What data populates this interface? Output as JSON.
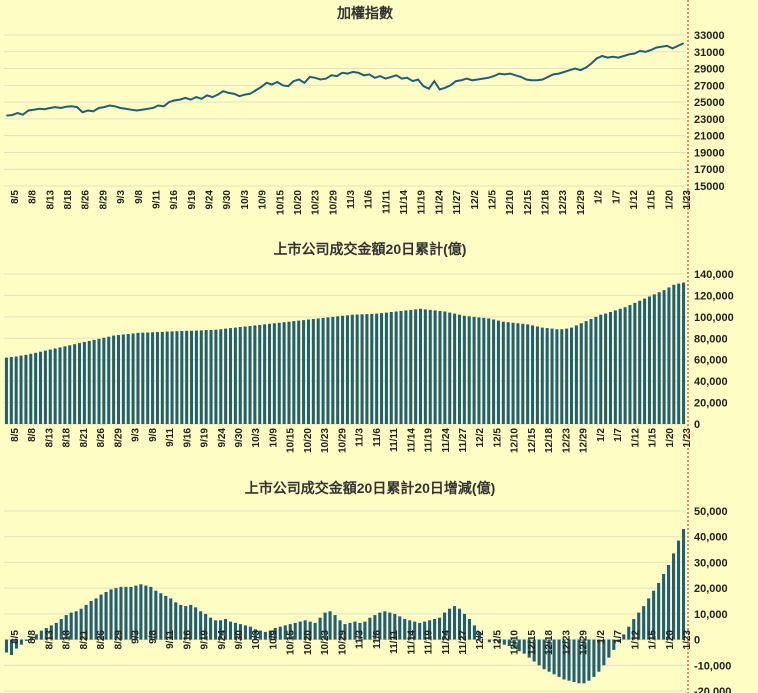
{
  "colors": {
    "background": "#FEFDC4",
    "series": "#1F5F7A",
    "marker_line": "#E53935"
  },
  "chart_data": [
    {
      "type": "line",
      "title": "加權指數",
      "xlabel": "",
      "ylabel": "",
      "ylim": [
        15000,
        33000
      ],
      "yticks": [
        "33000",
        "31000",
        "29000",
        "27000",
        "25000",
        "23000",
        "21000",
        "19000",
        "17000",
        "15000"
      ],
      "grid": true,
      "x_tick_labels": [
        "8/5",
        "8/8",
        "8/13",
        "8/18",
        "8/26",
        "8/29",
        "9/3",
        "9/8",
        "9/11",
        "9/16",
        "9/19",
        "9/24",
        "9/30",
        "10/3",
        "10/9",
        "10/15",
        "10/20",
        "10/23",
        "10/29",
        "11/3",
        "11/6",
        "11/11",
        "11/14",
        "11/19",
        "11/24",
        "11/27",
        "12/2",
        "12/5",
        "12/10",
        "12/15",
        "12/18",
        "12/23",
        "12/29",
        "1/2",
        "1/7",
        "1/12",
        "1/15",
        "1/20",
        "1/23"
      ],
      "series": [
        {
          "values": [
            23400,
            23450,
            23700,
            23500,
            24000,
            24100,
            24200,
            24150,
            24300,
            24400,
            24300,
            24450,
            24500,
            24400,
            23800,
            24000,
            23900,
            24300,
            24400,
            24600,
            24500,
            24300,
            24200,
            24100,
            24000,
            24100,
            24200,
            24300,
            24600,
            24500,
            25000,
            25200,
            25300,
            25500,
            25300,
            25600,
            25400,
            25800,
            25600,
            25900,
            26300,
            26100,
            26000,
            25700,
            25900,
            26000,
            26400,
            26800,
            27300,
            27100,
            27400,
            27000,
            26900,
            27500,
            27700,
            27300,
            28000,
            27900,
            27700,
            27800,
            28200,
            28100,
            28500,
            28400,
            28600,
            28500,
            28200,
            28300,
            27900,
            28100,
            27800,
            28000,
            28200,
            27800,
            27900,
            27500,
            27700,
            26900,
            26600,
            27500,
            26500,
            26700,
            27000,
            27500,
            27600,
            27800,
            27600,
            27700,
            27800,
            27900,
            28100,
            28400,
            28300,
            28400,
            28200,
            28000,
            27700,
            27600,
            27600,
            27700,
            28000,
            28300,
            28400,
            28600,
            28800,
            29000,
            28800,
            29100,
            29600,
            30200,
            30500,
            30300,
            30400,
            30300,
            30500,
            30700,
            30800,
            31100,
            31000,
            31200,
            31500,
            31600,
            31700,
            31400,
            31700,
            32000
          ]
        }
      ]
    },
    {
      "type": "bar",
      "title": "上市公司成交金額20日累計(億)",
      "xlabel": "",
      "ylabel": "",
      "ylim": [
        0,
        140000
      ],
      "yticks": [
        "140,000",
        "120,000",
        "100,000",
        "80,000",
        "60,000",
        "40,000",
        "20,000",
        "0"
      ],
      "grid": true,
      "x_tick_labels": [
        "8/5",
        "8/8",
        "8/13",
        "8/18",
        "8/21",
        "8/26",
        "8/29",
        "9/3",
        "9/8",
        "9/11",
        "9/16",
        "9/19",
        "9/24",
        "9/30",
        "10/3",
        "10/9",
        "10/15",
        "10/20",
        "10/23",
        "10/29",
        "11/3",
        "11/6",
        "11/11",
        "11/14",
        "11/19",
        "11/24",
        "11/27",
        "12/2",
        "12/5",
        "12/10",
        "12/15",
        "12/18",
        "12/23",
        "12/29",
        "1/2",
        "1/7",
        "1/12",
        "1/15",
        "1/20",
        "1/23"
      ],
      "series": [
        {
          "values": [
            62000,
            62500,
            63000,
            63800,
            64500,
            65500,
            66500,
            67500,
            68500,
            69500,
            70500,
            71500,
            72500,
            73500,
            74500,
            75500,
            76500,
            77500,
            78500,
            79500,
            80500,
            81500,
            82500,
            83000,
            83500,
            84000,
            84500,
            85000,
            85200,
            85400,
            85600,
            85800,
            86000,
            86200,
            86400,
            86600,
            86800,
            87000,
            87000,
            87200,
            87400,
            87600,
            87800,
            88000,
            88500,
            89000,
            89500,
            90000,
            90500,
            91000,
            91500,
            92000,
            92500,
            93000,
            93500,
            94000,
            94500,
            95000,
            95500,
            96000,
            96500,
            97000,
            97500,
            98000,
            98500,
            99000,
            99500,
            100000,
            100500,
            101000,
            101500,
            102000,
            102200,
            102400,
            102600,
            102800,
            103000,
            103500,
            104000,
            104500,
            105000,
            105500,
            106000,
            106500,
            107000,
            107500,
            107000,
            106500,
            106000,
            105500,
            105000,
            104000,
            103000,
            102000,
            101000,
            100500,
            100000,
            99500,
            99000,
            98500,
            97500,
            96500,
            95500,
            95000,
            94500,
            94000,
            93500,
            93000,
            92000,
            91000,
            90000,
            89500,
            89000,
            88500,
            88500,
            89000,
            90000,
            92000,
            94000,
            96000,
            98000,
            100000,
            102000,
            103000,
            104500,
            106000,
            107500,
            109000,
            111000,
            113000,
            115000,
            117000,
            119000,
            121000,
            123000,
            125000,
            127500,
            130000,
            131000,
            132000
          ]
        }
      ]
    },
    {
      "type": "bar",
      "title": "上市公司成交金額20日累計20日增減(億)",
      "xlabel": "",
      "ylabel": "",
      "ylim": [
        -20000,
        50000
      ],
      "yticks": [
        "50,000",
        "40,000",
        "30,000",
        "20,000",
        "10,000",
        "0",
        "-10,000",
        "-20,000"
      ],
      "grid": true,
      "x_tick_labels": [
        "8/5",
        "8/8",
        "8/13",
        "8/18",
        "8/21",
        "8/26",
        "8/29",
        "9/3",
        "9/8",
        "9/11",
        "9/16",
        "9/19",
        "9/24",
        "9/30",
        "10/3",
        "10/9",
        "10/15",
        "10/20",
        "10/23",
        "10/29",
        "11/3",
        "11/6",
        "11/11",
        "11/14",
        "11/19",
        "11/24",
        "11/27",
        "12/2",
        "12/5",
        "12/10",
        "12/15",
        "12/18",
        "12/23",
        "12/29",
        "1/2",
        "1/7",
        "1/12",
        "1/15",
        "1/20",
        "1/23"
      ],
      "series": [
        {
          "values": [
            -5000,
            -6000,
            -3500,
            -2000,
            -500,
            1000,
            2000,
            3500,
            4500,
            5500,
            6500,
            8000,
            9500,
            10500,
            11000,
            12000,
            13500,
            15000,
            16000,
            17500,
            18500,
            19500,
            20000,
            20500,
            20500,
            20500,
            21000,
            21500,
            21000,
            20500,
            19000,
            18000,
            17000,
            16000,
            14500,
            13500,
            13000,
            13500,
            12500,
            11000,
            10000,
            8500,
            7500,
            7500,
            8000,
            7000,
            6500,
            6000,
            5500,
            5000,
            4000,
            3500,
            3000,
            3500,
            4500,
            5000,
            5500,
            6000,
            6500,
            7000,
            7500,
            7000,
            6500,
            8500,
            10500,
            11000,
            9500,
            7500,
            6000,
            6500,
            7000,
            6500,
            7000,
            8500,
            9500,
            10500,
            11000,
            10500,
            10000,
            9000,
            8000,
            7500,
            7000,
            6500,
            7000,
            7500,
            8000,
            8500,
            10500,
            12000,
            13000,
            12000,
            10000,
            8000,
            5500,
            3000,
            0,
            -1000,
            -500,
            -1500,
            -2000,
            -2500,
            -3500,
            -4500,
            -5500,
            -7000,
            -8500,
            -10000,
            -11500,
            -12500,
            -13500,
            -14500,
            -15500,
            -16000,
            -16500,
            -17000,
            -17000,
            -16000,
            -14500,
            -12500,
            -10000,
            -7000,
            -4000,
            -1000,
            2000,
            5000,
            8000,
            10500,
            13000,
            16000,
            19000,
            22000,
            25500,
            29000,
            33500,
            38500,
            43000
          ]
        }
      ]
    }
  ]
}
